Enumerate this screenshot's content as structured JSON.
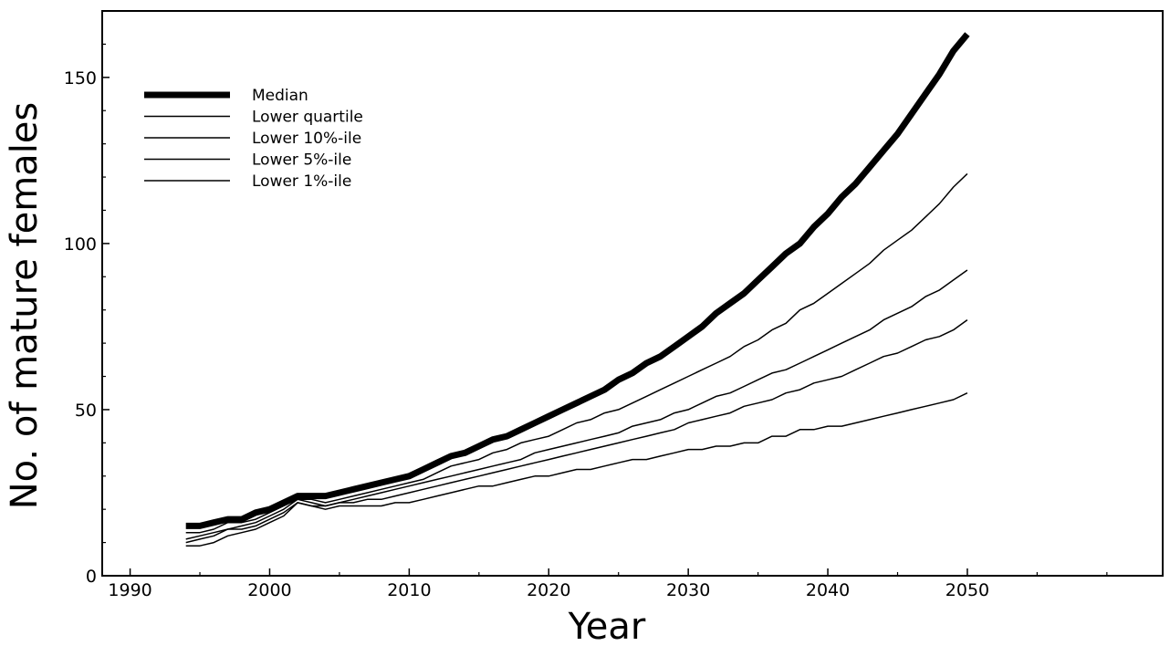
{
  "chart_data": {
    "type": "line",
    "title": "",
    "xlabel": "Year",
    "ylabel": "No. of mature females",
    "xlim": [
      1988,
      2064
    ],
    "ylim": [
      0,
      170
    ],
    "xticks": [
      1990,
      2000,
      2010,
      2020,
      2030,
      2040,
      2050
    ],
    "yticks": [
      0,
      50,
      100,
      150
    ],
    "grid": false,
    "legend_position": "top-left",
    "x": [
      1994,
      1995,
      1996,
      1997,
      1998,
      1999,
      2000,
      2001,
      2002,
      2003,
      2004,
      2005,
      2006,
      2007,
      2008,
      2009,
      2010,
      2011,
      2012,
      2013,
      2014,
      2015,
      2016,
      2017,
      2018,
      2019,
      2020,
      2021,
      2022,
      2023,
      2024,
      2025,
      2026,
      2027,
      2028,
      2029,
      2030,
      2031,
      2032,
      2033,
      2034,
      2035,
      2036,
      2037,
      2038,
      2039,
      2040,
      2041,
      2042,
      2043,
      2044,
      2045,
      2046,
      2047,
      2048,
      2049,
      2050
    ],
    "series": [
      {
        "name": "Median",
        "style": "thick",
        "values": [
          15,
          15,
          16,
          17,
          17,
          19,
          20,
          22,
          24,
          24,
          24,
          25,
          26,
          27,
          28,
          29,
          30,
          32,
          34,
          36,
          37,
          39,
          41,
          42,
          44,
          46,
          48,
          50,
          52,
          54,
          56,
          59,
          61,
          64,
          66,
          69,
          72,
          75,
          79,
          82,
          85,
          89,
          93,
          97,
          100,
          105,
          109,
          114,
          118,
          123,
          128,
          133,
          139,
          145,
          151,
          158,
          163
        ]
      },
      {
        "name": "Lower quartile",
        "style": "thin",
        "values": [
          13,
          13,
          14,
          16,
          16,
          17,
          19,
          21,
          23,
          23,
          22,
          23,
          24,
          25,
          26,
          27,
          28,
          29,
          31,
          33,
          34,
          35,
          37,
          38,
          40,
          41,
          42,
          44,
          46,
          47,
          49,
          50,
          52,
          54,
          56,
          58,
          60,
          62,
          64,
          66,
          69,
          71,
          74,
          76,
          80,
          82,
          85,
          88,
          91,
          94,
          98,
          101,
          104,
          108,
          112,
          117,
          121
        ]
      },
      {
        "name": "Lower 10%-ile",
        "style": "thin",
        "values": [
          11,
          12,
          13,
          14,
          15,
          16,
          18,
          20,
          23,
          22,
          21,
          22,
          23,
          24,
          25,
          26,
          27,
          28,
          29,
          30,
          31,
          32,
          33,
          34,
          35,
          37,
          38,
          39,
          40,
          41,
          42,
          43,
          45,
          46,
          47,
          49,
          50,
          52,
          54,
          55,
          57,
          59,
          61,
          62,
          64,
          66,
          68,
          70,
          72,
          74,
          77,
          79,
          81,
          84,
          86,
          89,
          92
        ]
      },
      {
        "name": "Lower 5%-ile",
        "style": "thin",
        "values": [
          10,
          11,
          12,
          14,
          14,
          15,
          17,
          19,
          22,
          21,
          21,
          22,
          22,
          23,
          23,
          24,
          25,
          26,
          27,
          28,
          29,
          30,
          31,
          32,
          33,
          34,
          35,
          36,
          37,
          38,
          39,
          40,
          41,
          42,
          43,
          44,
          46,
          47,
          48,
          49,
          51,
          52,
          53,
          55,
          56,
          58,
          59,
          60,
          62,
          64,
          66,
          67,
          69,
          71,
          72,
          74,
          77
        ]
      },
      {
        "name": "Lower 1%-ile",
        "style": "thin",
        "values": [
          9,
          9,
          10,
          12,
          13,
          14,
          16,
          18,
          22,
          21,
          20,
          21,
          21,
          21,
          21,
          22,
          22,
          23,
          24,
          25,
          26,
          27,
          27,
          28,
          29,
          30,
          30,
          31,
          32,
          32,
          33,
          34,
          35,
          35,
          36,
          37,
          38,
          38,
          39,
          39,
          40,
          40,
          42,
          42,
          44,
          44,
          45,
          45,
          46,
          47,
          48,
          49,
          50,
          51,
          52,
          53,
          55
        ]
      }
    ]
  }
}
